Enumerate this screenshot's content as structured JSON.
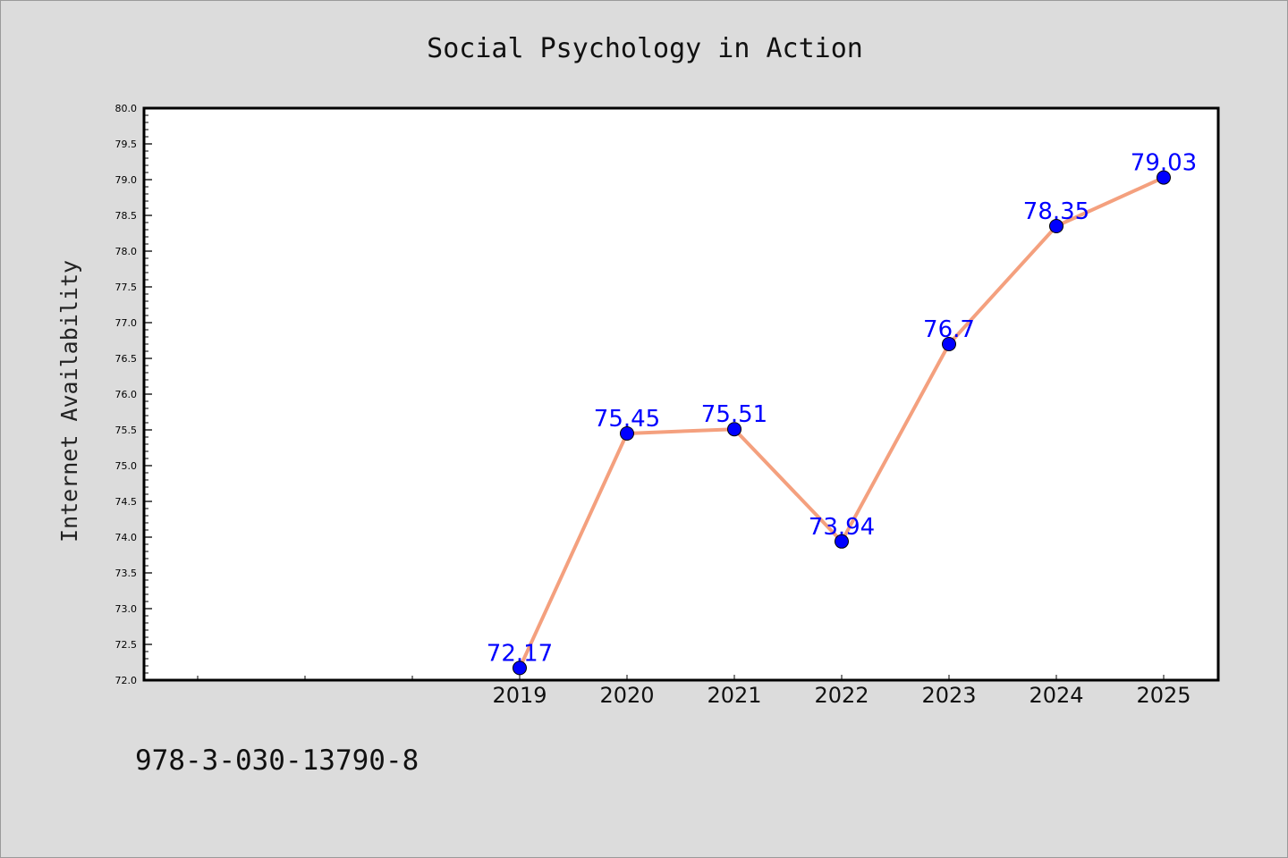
{
  "chart_data": {
    "type": "line",
    "title": "Social Psychology in Action",
    "xlabel": "",
    "ylabel": "Internet Availability",
    "categories": [
      "2019",
      "2020",
      "2021",
      "2022",
      "2023",
      "2024",
      "2025"
    ],
    "values": [
      72.17,
      75.45,
      75.51,
      73.94,
      76.7,
      78.35,
      79.03
    ],
    "data_labels": [
      "72.17",
      "75.45",
      "75.51",
      "73.94",
      "76.7",
      "78.35",
      "79.03"
    ],
    "ylim": [
      72.0,
      80.0
    ],
    "yticks": [
      "72.0",
      "72.5",
      "73.0",
      "73.5",
      "74.0",
      "74.5",
      "75.0",
      "75.5",
      "76.0",
      "76.5",
      "77.0",
      "77.5",
      "78.0",
      "78.5",
      "79.0",
      "79.5",
      "80.0"
    ],
    "grid": false,
    "line_color": "#f4a07e",
    "marker_color": "#0000ff",
    "label_color": "#0000ff"
  },
  "footer": {
    "isbn": "978-3-030-13790-8"
  }
}
